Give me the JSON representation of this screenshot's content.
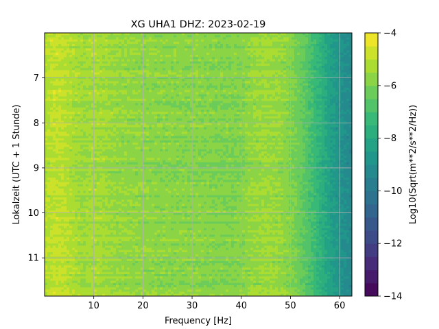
{
  "chart_data": {
    "type": "heatmap",
    "title": "XG UHA1  DHZ: 2023-02-19",
    "xlabel": "Frequency [Hz]",
    "ylabel": "Lokalzeit (UTC + 1 Stunde)",
    "xlim": [
      0,
      62.5
    ],
    "ylim": [
      11.85,
      6.0
    ],
    "y_inverted": true,
    "xticks": [
      10,
      20,
      30,
      40,
      50,
      60
    ],
    "yticks": [
      7,
      8,
      9,
      10,
      11
    ],
    "grid": true,
    "colorbar": {
      "label": "Log10(Sqrt(m**2/s**2/Hz))",
      "range": [
        -14,
        -4
      ],
      "ticks": [
        -4,
        -6,
        -8,
        -10,
        -12,
        -14
      ],
      "levels": 20,
      "colormap": "viridis"
    },
    "approx_profile_by_frequency": {
      "frequency_hz": [
        0,
        2,
        4,
        6,
        8,
        10,
        15,
        20,
        25,
        30,
        35,
        40,
        42,
        45,
        48,
        50,
        52,
        54,
        56,
        58,
        60,
        62.5
      ],
      "log10_amplitude": [
        -5.2,
        -4.9,
        -5.0,
        -5.3,
        -5.5,
        -5.3,
        -5.6,
        -5.7,
        -5.8,
        -5.8,
        -5.9,
        -5.9,
        -5.6,
        -5.5,
        -5.6,
        -5.9,
        -6.3,
        -6.9,
        -7.6,
        -8.3,
        -8.9,
        -9.3
      ]
    }
  }
}
